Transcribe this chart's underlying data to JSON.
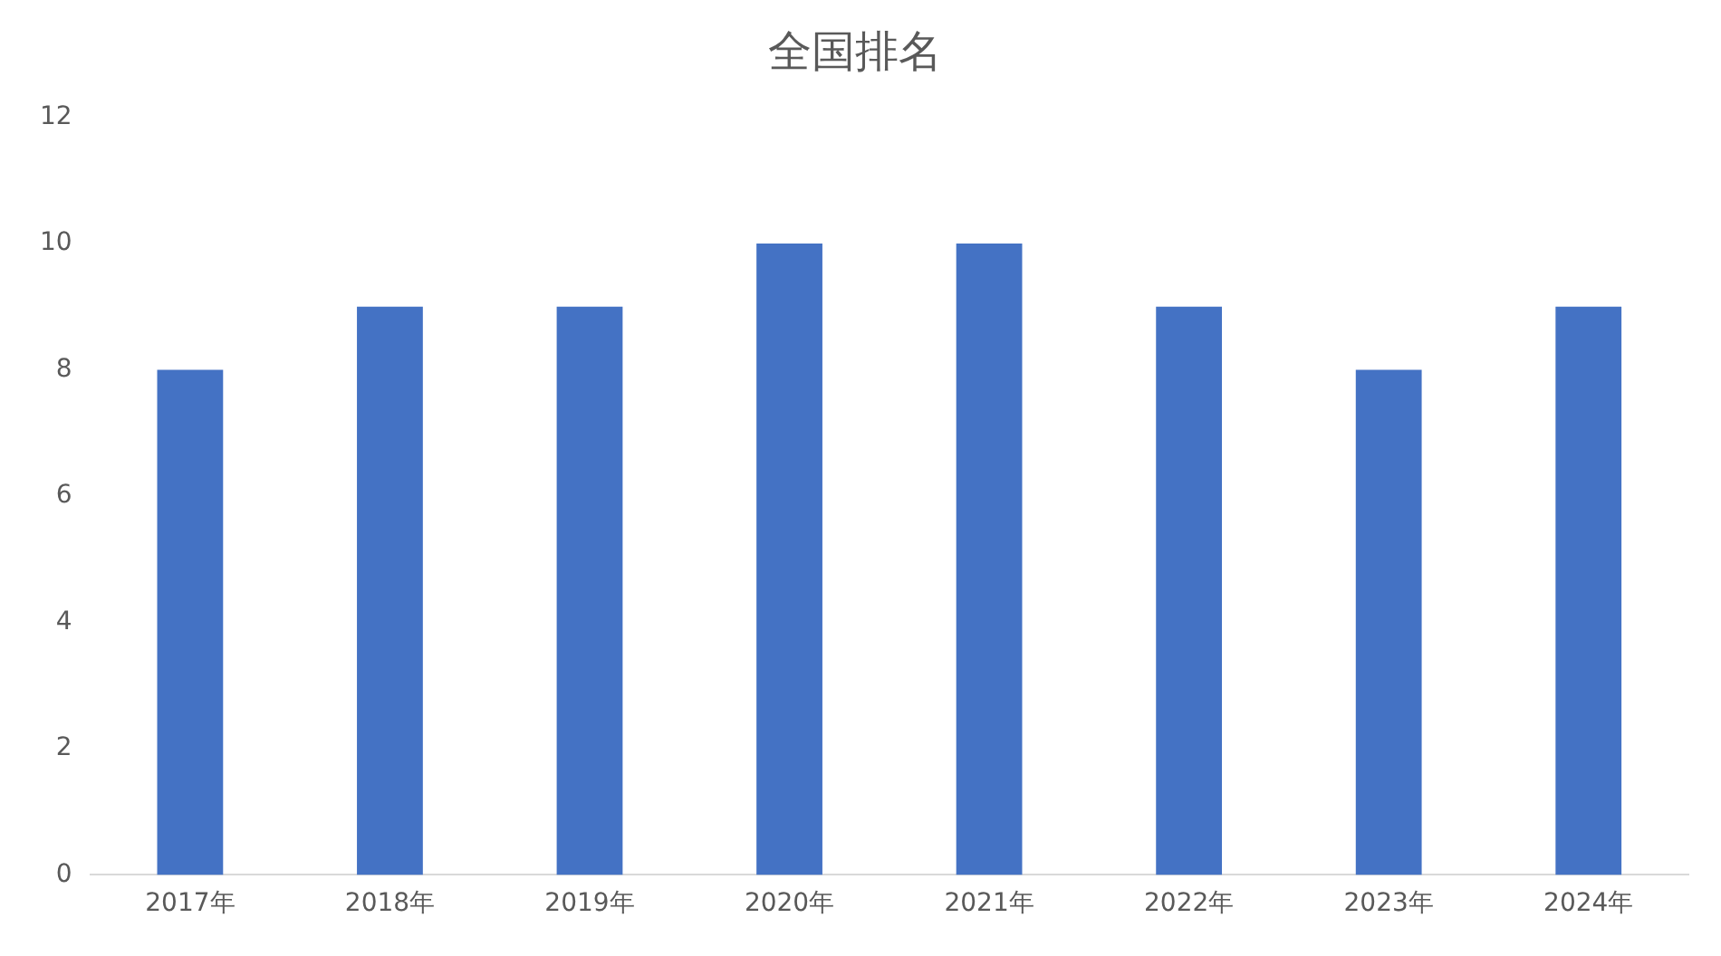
{
  "chart_data": {
    "type": "bar",
    "title": "全国排名",
    "categories": [
      "2017年",
      "2018年",
      "2019年",
      "2020年",
      "2021年",
      "2022年",
      "2023年",
      "2024年"
    ],
    "values": [
      8,
      9,
      9,
      10,
      10,
      9,
      8,
      9
    ],
    "color": "#4472c4",
    "ylim": [
      0,
      12
    ],
    "yticks": [
      0,
      2,
      4,
      6,
      8,
      10,
      12
    ],
    "grid": false
  }
}
